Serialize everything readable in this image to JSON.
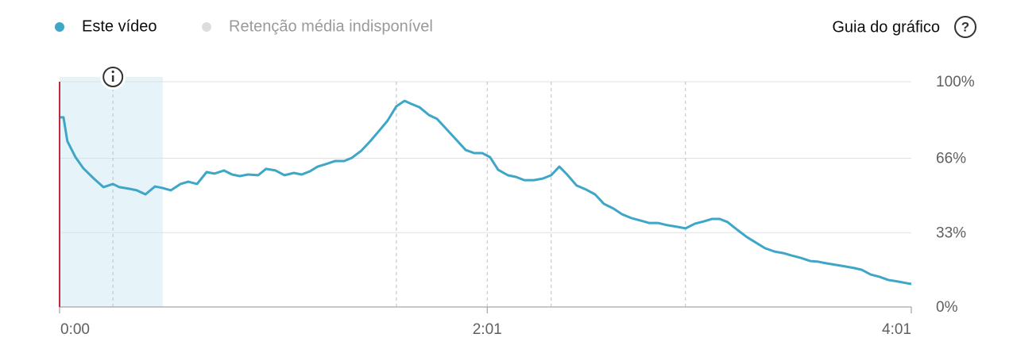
{
  "chart_data": {
    "type": "line",
    "x": [
      0,
      1.1,
      2.2,
      4.5,
      6.7,
      9.7,
      12.4,
      15.1,
      16.9,
      19.6,
      21.8,
      24.3,
      27,
      29.2,
      31.5,
      34.2,
      36.4,
      38.9,
      41.6,
      43.8,
      46.5,
      48.8,
      51,
      53.3,
      56.2,
      58.4,
      61.1,
      63.6,
      66.3,
      68.5,
      70.8,
      73,
      75.3,
      78,
      80.5,
      82.7,
      85.4,
      87.9,
      90.4,
      92.8,
      95.3,
      97.6,
      99.6,
      101.8,
      104.5,
      106.8,
      109.5,
      112.2,
      114.9,
      117.3,
      119.6,
      121.8,
      124.1,
      126.8,
      129.2,
      131.5,
      134.2,
      136.7,
      139.1,
      141.4,
      143.6,
      146.3,
      149,
      151.5,
      154,
      156.7,
      159.1,
      161.9,
      164.3,
      166.8,
      169.3,
      172,
      174.7,
      177.1,
      179.8,
      182.3,
      184.6,
      186.8,
      189,
      191.8,
      194.5,
      197.1,
      199.6,
      202.3,
      204.8,
      207,
      209.7,
      212.4,
      214.7,
      216.9,
      219.6,
      222.3,
      224.8,
      227,
      229.5,
      232,
      234.5,
      237.2,
      241
    ],
    "series": [
      {
        "name": "Este vídeo",
        "color": "#3ea6c7",
        "values": [
          84.2,
          84.2,
          73.6,
          66.5,
          61.6,
          57,
          53.2,
          54.6,
          53.2,
          52.5,
          51.8,
          50,
          53.5,
          52.8,
          51.8,
          54.6,
          55.6,
          54.6,
          59.9,
          59.2,
          60.6,
          58.8,
          58.1,
          58.8,
          58.5,
          61.3,
          60.6,
          58.5,
          59.5,
          58.8,
          60.2,
          62.3,
          63.4,
          64.8,
          64.8,
          66.2,
          69.4,
          73.6,
          78.2,
          82.7,
          89.1,
          91.5,
          90.1,
          88.7,
          85.2,
          83.5,
          78.9,
          74.3,
          69.7,
          68.3,
          68.3,
          66.5,
          60.9,
          58.5,
          57.7,
          56.3,
          56.3,
          57,
          58.5,
          62.3,
          58.8,
          53.9,
          52.1,
          50,
          45.8,
          43.7,
          41.2,
          39.4,
          38.4,
          37.3,
          37.3,
          36.3,
          35.6,
          34.9,
          37,
          38,
          39.1,
          39.1,
          37.7,
          34.2,
          31,
          28.5,
          26.1,
          24.6,
          23.9,
          22.9,
          21.8,
          20.4,
          20.1,
          19.4,
          18.7,
          18,
          17.3,
          16.5,
          14.4,
          13.4,
          12,
          11.3,
          10.2
        ]
      }
    ],
    "unavailable_series": {
      "name": "Retenção média indisponível",
      "color": "#dddddd"
    },
    "guide_label": "Guia do gráfico",
    "help_label": "?",
    "xlim": [
      0,
      241
    ],
    "xticks": [
      {
        "value": 0,
        "label": "0:00"
      },
      {
        "value": 121,
        "label": "2:01"
      },
      {
        "value": 241,
        "label": "4:01"
      }
    ],
    "ylim": [
      0,
      100
    ],
    "yticks": [
      {
        "value": 0,
        "label": "0%"
      },
      {
        "value": 33,
        "label": "33%"
      },
      {
        "value": 66,
        "label": "66%"
      },
      {
        "value": 100,
        "label": "100%"
      }
    ],
    "grid": true,
    "highlight_range": [
      0,
      29.2
    ],
    "key_moments": [
      15.1,
      95.3,
      121,
      139.1,
      177.1
    ],
    "playhead": 0
  }
}
